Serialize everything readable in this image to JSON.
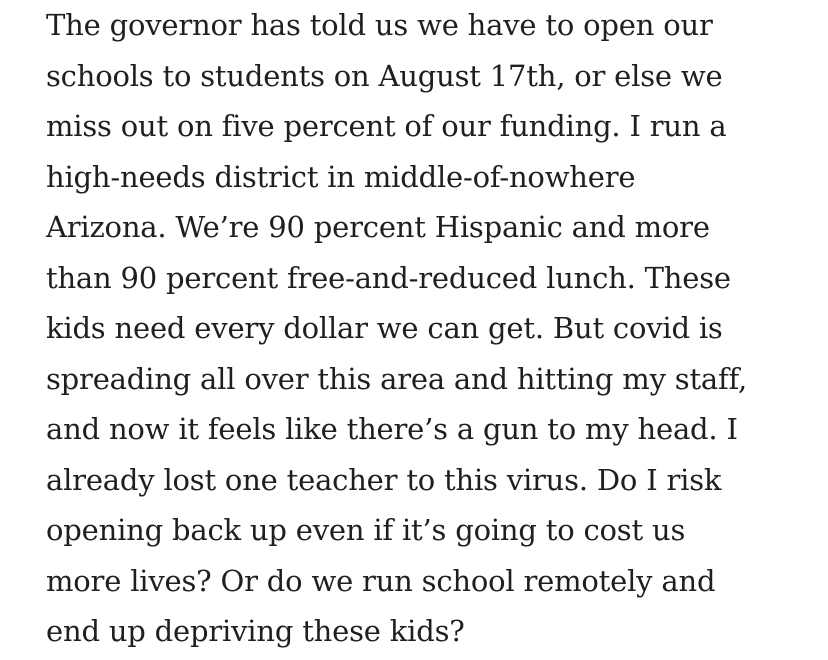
{
  "article": {
    "paragraph_lines": [
      "The governor has told us we have to open our",
      "schools to students on August 17th, or else we",
      "miss out on five percent of our funding. I run a",
      "high-needs district in middle-of-nowhere",
      "Arizona. We’re 90 percent Hispanic and more",
      "than 90 percent free-and-reduced lunch. These",
      "kids need every dollar we can get. But covid is",
      "spreading all over this area and hitting my staff,",
      "and now it feels like there’s a gun to my head. I",
      "already lost one teacher to this virus. Do I risk",
      "opening back up even if it’s going to cost us",
      "more lives? Or do we run school remotely and",
      "end up depriving these kids?"
    ],
    "text_color": "#1f1f1f",
    "background_color": "#ffffff"
  }
}
